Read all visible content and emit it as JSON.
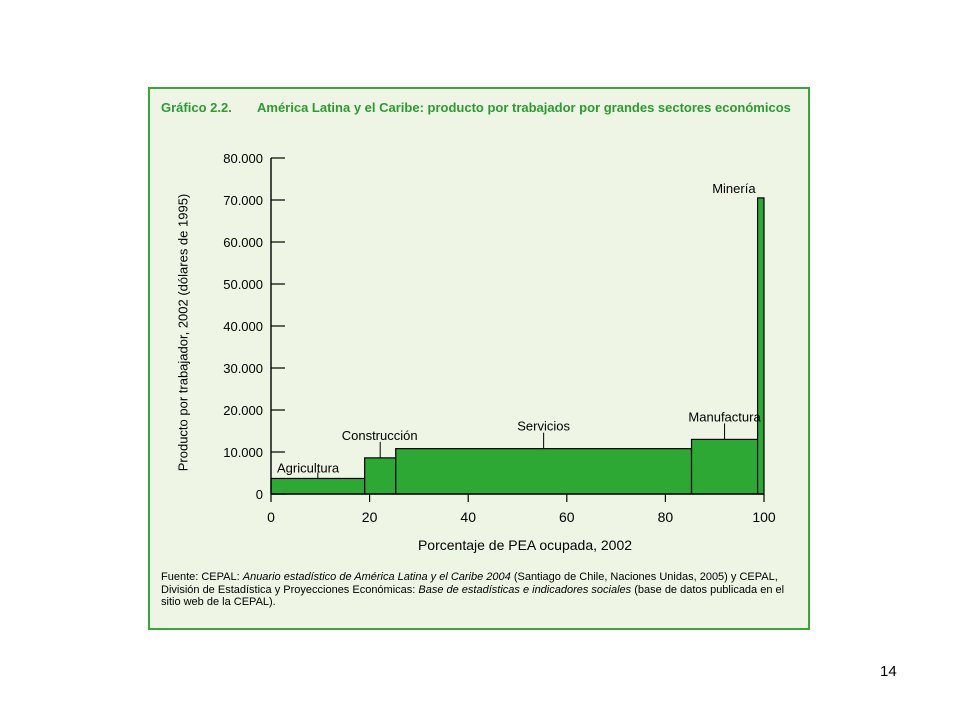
{
  "page_number": "14",
  "figure": {
    "title_prefix": "Gráfico 2.2.",
    "title": "América Latina y el Caribe: producto por trabajador por grandes sectores económicos",
    "source": {
      "t1": "Fuente: CEPAL: ",
      "t2": "Anuario estadístico de América Latina y el Caribe 2004",
      "t3": " (Santiago de Chile, Naciones Unidas, 2005) y CEPAL, División de Estadística y Proyecciones Económicas: ",
      "t4": "Base de estadísticas e indicadores sociales",
      "t5": " (base de datos publicada en el sitio web de la CEPAL)."
    }
  },
  "chart_data": {
    "type": "bar",
    "variable_width": true,
    "title": "",
    "xlabel": "Porcentaje de PEA ocupada, 2002",
    "ylabel": "Producto por trabajador, 2002 (dólares de 1995)",
    "xlim": [
      0,
      100
    ],
    "ylim": [
      0,
      80000
    ],
    "x_ticks": [
      "0",
      "20",
      "40",
      "60",
      "80",
      "100"
    ],
    "y_ticks": [
      "0",
      "10.000",
      "20.000",
      "30.000",
      "40.000",
      "50.000",
      "60.000",
      "70.000",
      "80.000"
    ],
    "grid": false,
    "legend": "none",
    "bar_color": "#2ea834",
    "sectors": [
      {
        "label": "Agricultura",
        "x_start": 0,
        "x_end": 19,
        "value": 3700
      },
      {
        "label": "Construcción",
        "x_start": 19,
        "x_end": 25.3,
        "value": 8600
      },
      {
        "label": "Servicios",
        "x_start": 25.3,
        "x_end": 85.3,
        "value": 10800
      },
      {
        "label": "Manufactura",
        "x_start": 85.3,
        "x_end": 98.7,
        "value": 13000
      },
      {
        "label": "Minería",
        "x_start": 98.7,
        "x_end": 100,
        "value": 70500
      }
    ]
  }
}
